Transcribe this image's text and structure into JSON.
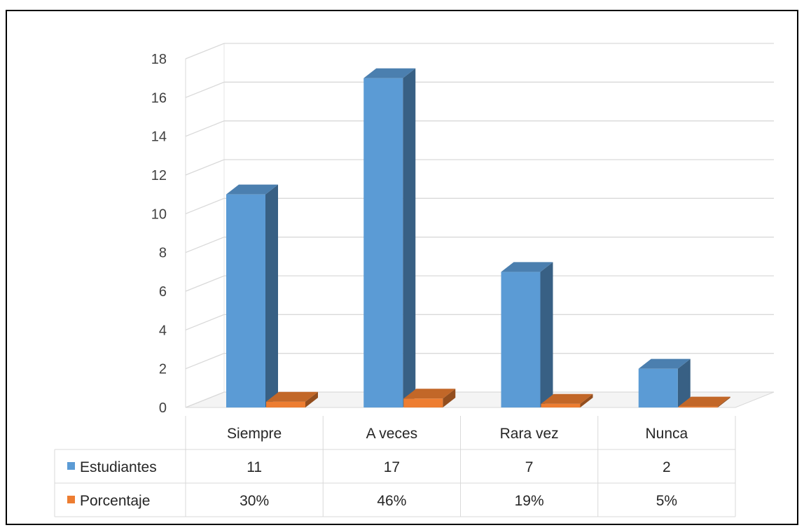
{
  "chart_data": {
    "type": "bar",
    "categories": [
      "Siempre",
      "A veces",
      "Rara vez",
      "Nunca"
    ],
    "series": [
      {
        "name": "Estudiantes",
        "values": [
          11,
          17,
          7,
          2
        ],
        "color": "#5b9bd5",
        "value_labels": [
          "11",
          "17",
          "7",
          "2"
        ]
      },
      {
        "name": "Porcentaje",
        "values": [
          0.3,
          0.46,
          0.19,
          0.05
        ],
        "color": "#ed7d31",
        "value_labels": [
          "30%",
          "46%",
          "19%",
          "5%"
        ]
      }
    ],
    "ylim": [
      0,
      18
    ],
    "yticks": [
      "0",
      "2",
      "4",
      "6",
      "8",
      "10",
      "12",
      "14",
      "16",
      "18"
    ],
    "grid": true,
    "legend": "data-table",
    "style": "3d-column"
  }
}
